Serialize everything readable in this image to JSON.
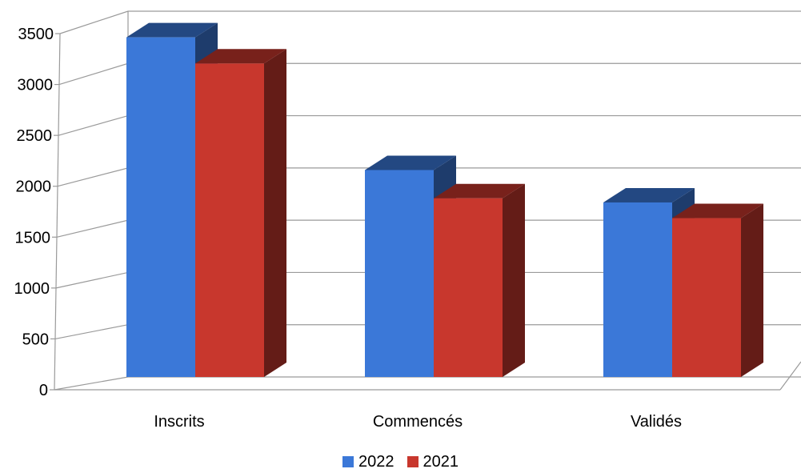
{
  "chart_data": {
    "type": "bar",
    "style": "3d-clustered",
    "categories": [
      "Inscrits",
      "Commencés",
      "Validés"
    ],
    "series": [
      {
        "name": "2022",
        "color": "#3b78d8",
        "values": [
          3250,
          1980,
          1670
        ]
      },
      {
        "name": "2021",
        "color": "#c8372d",
        "values": [
          3000,
          1710,
          1520
        ]
      }
    ],
    "yticks": [
      "0",
      "500",
      "1000",
      "1500",
      "2000",
      "2500",
      "3000",
      "3500"
    ],
    "ylim": [
      0,
      3500
    ],
    "grid": true,
    "legend_position": "bottom"
  }
}
